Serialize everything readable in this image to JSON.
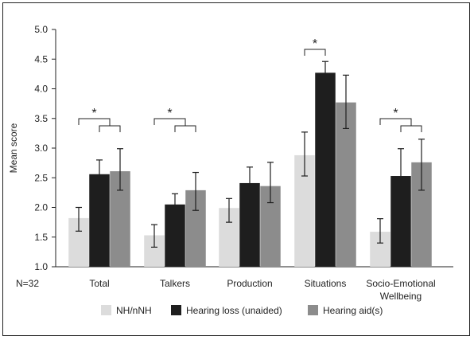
{
  "chart_data": {
    "type": "bar",
    "ylabel": "Mean score",
    "ylim": [
      1.0,
      5.0
    ],
    "yticks": [
      "1.0",
      "1.5",
      "2.0",
      "2.5",
      "3.0",
      "3.5",
      "4.0",
      "4.5",
      "5.0"
    ],
    "n_label": "N=32",
    "categories": [
      "Total",
      "Talkers",
      "Production",
      "Situations",
      "Socio-Emotional Wellbeing"
    ],
    "category_lines": [
      [
        "Total"
      ],
      [
        "Talkers"
      ],
      [
        "Production"
      ],
      [
        "Situations"
      ],
      [
        "Socio-Emotional",
        "Wellbeing"
      ]
    ],
    "series": [
      {
        "name": "NH/nNH",
        "color": "#dcdcdc",
        "values": [
          1.82,
          1.53,
          1.99,
          2.88,
          1.59
        ],
        "err_low": [
          1.6,
          1.33,
          1.75,
          2.53,
          1.4
        ],
        "err_high": [
          2.0,
          1.71,
          2.15,
          3.27,
          1.81
        ]
      },
      {
        "name": "Hearing loss (unaided)",
        "color": "#1e1e1e",
        "values": [
          2.56,
          2.05,
          2.41,
          4.27,
          2.53
        ],
        "err_low": [
          2.32,
          1.88,
          2.14,
          4.07,
          2.07
        ],
        "err_high": [
          2.8,
          2.23,
          2.68,
          4.46,
          2.99
        ]
      },
      {
        "name": "Hearing aid(s)",
        "color": "#8c8c8c",
        "values": [
          2.61,
          2.29,
          2.36,
          3.77,
          2.76
        ],
        "err_low": [
          2.29,
          1.95,
          2.08,
          3.33,
          2.29
        ],
        "err_high": [
          2.99,
          2.59,
          2.76,
          4.23,
          3.15
        ]
      }
    ],
    "significance": {
      "marker": "*",
      "categories": [
        "Total",
        "Talkers",
        "Situations",
        "Socio-Emotional Wellbeing"
      ]
    },
    "legend_position": "bottom",
    "grid": false
  }
}
